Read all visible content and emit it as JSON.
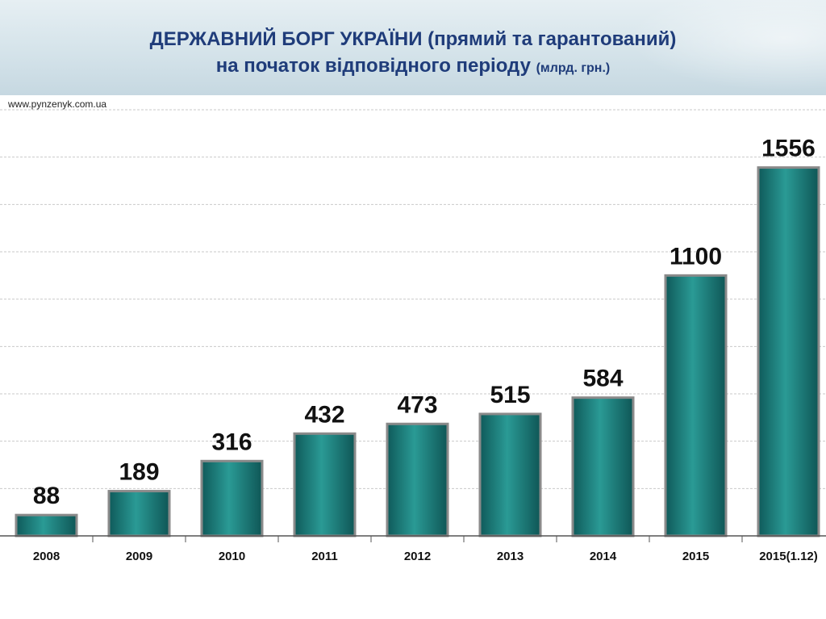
{
  "header": {
    "title_line1": "ДЕРЖАВНИЙ БОРГ УКРАЇНИ (прямий та гарантований)",
    "title_line2": "на початок відповідного періоду",
    "title_unit": "(млрд. грн.)"
  },
  "source": "www.pynzenyk.com.ua",
  "colors": {
    "bar": "#1a7a78",
    "bar_edge": "#8a8a8a",
    "title": "#1f3c7a"
  },
  "chart_data": {
    "type": "bar",
    "categories": [
      "2008",
      "2009",
      "2010",
      "2011",
      "2012",
      "2013",
      "2014",
      "2015",
      "2015(1.12)"
    ],
    "values": [
      88,
      189,
      316,
      432,
      473,
      515,
      584,
      1100,
      1556
    ],
    "title": "ДЕРЖАВНИЙ БОРГ УКРАЇНИ (прямий та гарантований) на початок відповідного періоду (млрд. грн.)",
    "xlabel": "",
    "ylabel": "",
    "ylim": [
      0,
      1800
    ],
    "grid": true,
    "legend": "none",
    "data_labels": true
  }
}
